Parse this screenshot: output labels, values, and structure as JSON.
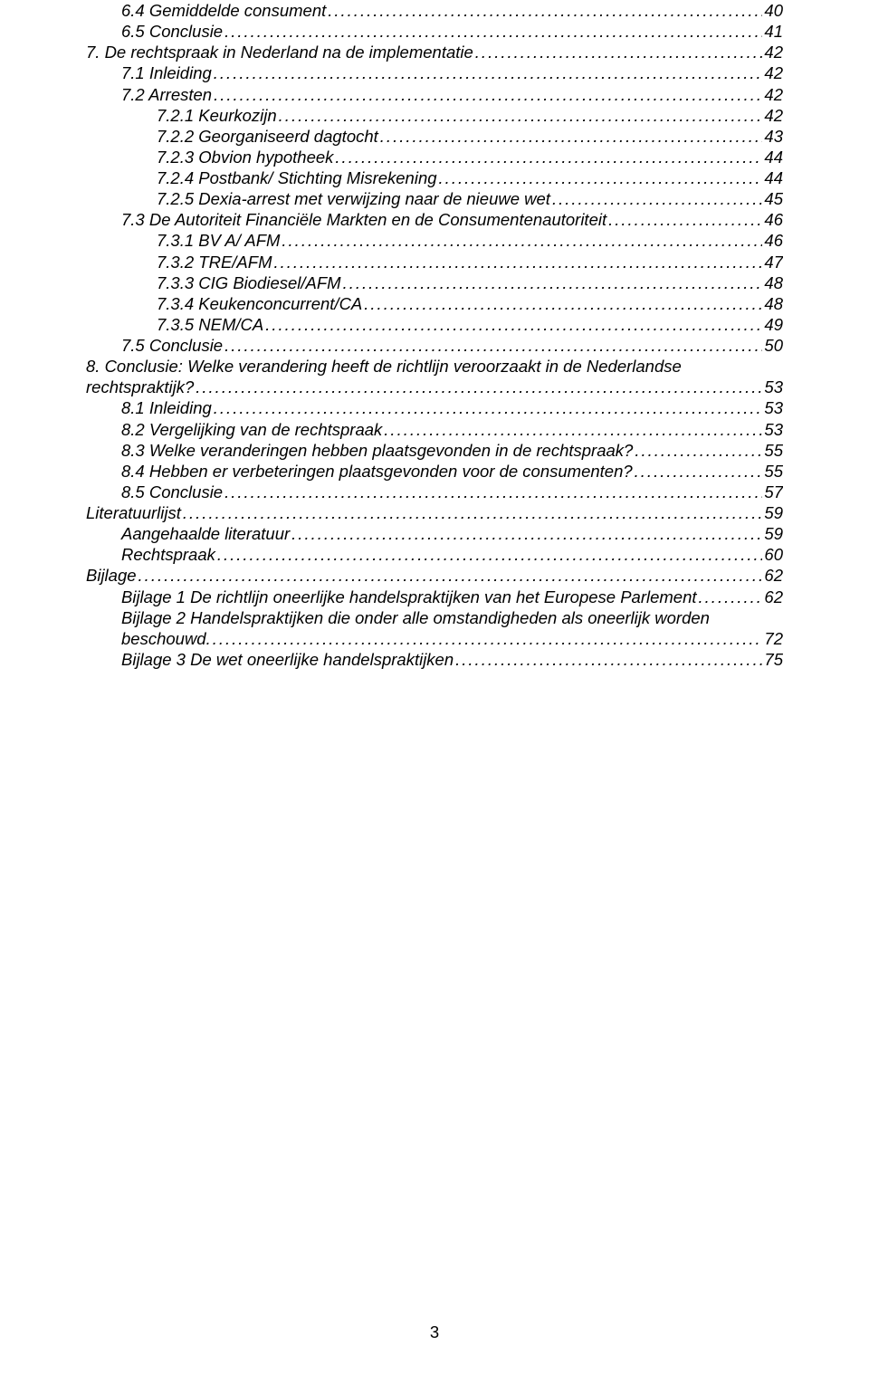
{
  "entries": [
    {
      "level": 1,
      "label": "6.4 Gemiddelde consument",
      "page": "40"
    },
    {
      "level": 1,
      "label": "6.5 Conclusie",
      "page": "41"
    },
    {
      "level": 0,
      "label": "7. De rechtspraak in Nederland na de implementatie",
      "page": "42"
    },
    {
      "level": 1,
      "label": "7.1 Inleiding",
      "page": "42"
    },
    {
      "level": 1,
      "label": "7.2 Arresten",
      "page": "42"
    },
    {
      "level": 2,
      "label": "7.2.1 Keurkozijn",
      "page": "42"
    },
    {
      "level": 2,
      "label": "7.2.2 Georganiseerd dagtocht",
      "page": "43"
    },
    {
      "level": 2,
      "label": "7.2.3 Obvion hypotheek",
      "page": "44"
    },
    {
      "level": 2,
      "label": "7.2.4 Postbank/ Stichting Misrekening",
      "page": "44"
    },
    {
      "level": 2,
      "label": "7.2.5 Dexia-arrest met verwijzing naar de nieuwe wet",
      "page": "45"
    },
    {
      "level": 1,
      "label": "7.3 De Autoriteit Financiële Markten en de Consumentenautoriteit",
      "page": "46"
    },
    {
      "level": 2,
      "label": "7.3.1 BV A/ AFM",
      "page": "46"
    },
    {
      "level": 2,
      "label": "7.3.2 TRE/AFM",
      "page": "47"
    },
    {
      "level": 2,
      "label": "7.3.3 CIG Biodiesel/AFM",
      "page": "48"
    },
    {
      "level": 2,
      "label": "7.3.4 Keukenconcurrent/CA",
      "page": "48"
    },
    {
      "level": 2,
      "label": "7.3.5 NEM/CA",
      "page": "49"
    },
    {
      "level": 1,
      "label": "7.5 Conclusie",
      "page": "50"
    },
    {
      "level": 0,
      "multi": true,
      "first": "8. Conclusie: Welke verandering heeft de richtlijn veroorzaakt in de Nederlandse",
      "second": "rechtspraktijk?",
      "page": "53"
    },
    {
      "level": 1,
      "label": "8.1 Inleiding",
      "page": "53"
    },
    {
      "level": 1,
      "label": "8.2 Vergelijking van de rechtspraak",
      "page": "53"
    },
    {
      "level": 1,
      "label": "8.3 Welke veranderingen hebben plaatsgevonden in de rechtspraak?",
      "page": "55"
    },
    {
      "level": 1,
      "label": "8.4 Hebben er verbeteringen plaatsgevonden voor de consumenten?",
      "page": "55"
    },
    {
      "level": 1,
      "label": "8.5 Conclusie",
      "page": "57"
    },
    {
      "level": 0,
      "label": "Literatuurlijst",
      "page": "59"
    },
    {
      "level": 1,
      "label": "Aangehaalde literatuur",
      "page": "59"
    },
    {
      "level": 1,
      "label": "Rechtspraak",
      "page": "60"
    },
    {
      "level": 0,
      "label": "Bijlage",
      "page": "62"
    },
    {
      "level": 1,
      "label": "Bijlage 1  De richtlijn oneerlijke handelspraktijken van het Europese Parlement",
      "page": "62"
    },
    {
      "level": 1,
      "multi": true,
      "first": "Bijlage 2 Handelspraktijken die onder alle omstandigheden als oneerlijk worden",
      "second": "beschouwd.",
      "page": "72"
    },
    {
      "level": 1,
      "label": "Bijlage 3  De wet oneerlijke handelspraktijken",
      "page": "75"
    }
  ],
  "pageNumber": "3"
}
